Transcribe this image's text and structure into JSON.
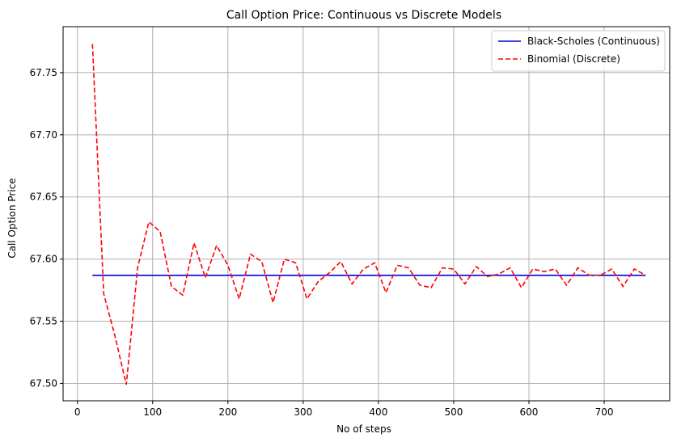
{
  "chart_data": {
    "type": "line",
    "title": "Call Option Price: Continuous vs Discrete Models",
    "xlabel": "No of steps",
    "ylabel": "Call Option Price",
    "xlim": [
      -19,
      787
    ],
    "ylim": [
      67.486,
      67.787
    ],
    "xticks": [
      0,
      100,
      200,
      300,
      400,
      500,
      600,
      700
    ],
    "yticks": [
      67.5,
      67.55,
      67.6,
      67.65,
      67.7,
      67.75
    ],
    "ytick_decimals": 2,
    "grid": true,
    "legend_position": "top-right",
    "series": [
      {
        "name": "Black-Scholes (Continuous)",
        "color": "#0000cc",
        "style": "solid",
        "x": [
          20,
          755
        ],
        "y": [
          67.587,
          67.587
        ]
      },
      {
        "name": "Binomial (Discrete)",
        "color": "#ff0000",
        "style": "dashed",
        "x": [
          20,
          35,
          50,
          65,
          80,
          95,
          110,
          125,
          140,
          155,
          170,
          185,
          200,
          215,
          230,
          245,
          260,
          275,
          290,
          305,
          320,
          335,
          350,
          365,
          380,
          395,
          410,
          425,
          440,
          455,
          470,
          485,
          500,
          515,
          530,
          545,
          560,
          575,
          590,
          605,
          620,
          635,
          650,
          665,
          680,
          695,
          710,
          725,
          740,
          755
        ],
        "y": [
          67.773,
          67.572,
          67.538,
          67.499,
          67.593,
          67.63,
          67.622,
          67.578,
          67.571,
          67.613,
          67.585,
          67.611,
          67.595,
          67.568,
          67.604,
          67.598,
          67.565,
          67.6,
          67.597,
          67.568,
          67.582,
          67.589,
          67.598,
          67.58,
          67.592,
          67.597,
          67.573,
          67.595,
          67.593,
          67.579,
          67.577,
          67.593,
          67.592,
          67.58,
          67.594,
          67.586,
          67.588,
          67.593,
          67.577,
          67.592,
          67.59,
          67.592,
          67.579,
          67.593,
          67.587,
          67.587,
          67.592,
          67.578,
          67.592,
          67.587
        ]
      }
    ]
  }
}
